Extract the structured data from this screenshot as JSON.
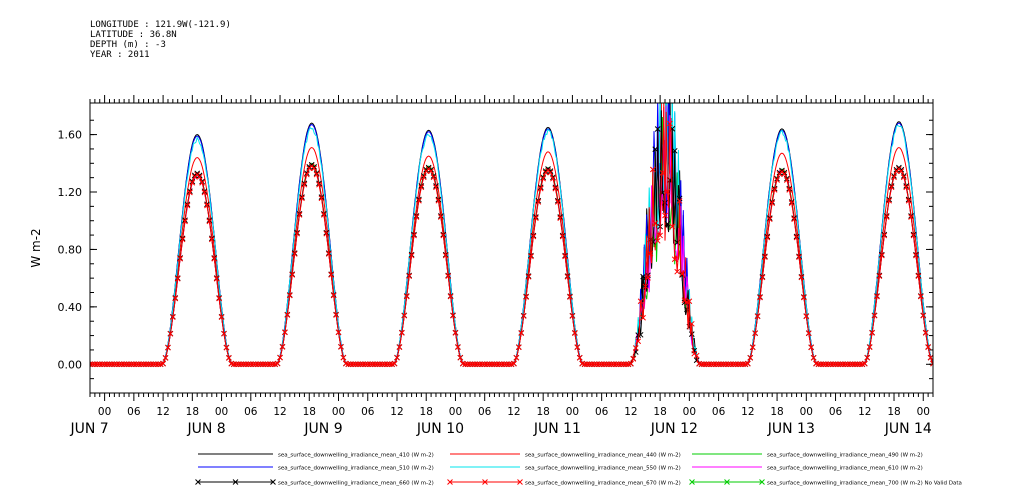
{
  "header": {
    "longitude": "LONGITUDE : 121.9W(-121.9)",
    "latitude": "LATITUDE : 36.8N",
    "depth": "DEPTH (m) : -3",
    "year": "YEAR : 2011"
  },
  "chart_data": {
    "type": "line",
    "ylabel": "W m-2",
    "ylim": [
      -0.2,
      1.82
    ],
    "yticks": [
      0.0,
      0.4,
      0.8,
      1.2,
      1.6
    ],
    "ytick_labels": [
      "0.00",
      "0.40",
      "0.80",
      "1.20",
      "1.60"
    ],
    "x_unit": "hours from 2011-06-07 00:00",
    "xlim": [
      -3,
      170
    ],
    "hour_tick_labels": [
      "06",
      "12",
      "18",
      "00"
    ],
    "day_labels": [
      {
        "label": "JUN  7",
        "hour": 0
      },
      {
        "label": "JUN  8",
        "hour": 24
      },
      {
        "label": "JUN  9",
        "hour": 48
      },
      {
        "label": "JUN 10",
        "hour": 72
      },
      {
        "label": "JUN 11",
        "hour": 96
      },
      {
        "label": "JUN 12",
        "hour": 120
      },
      {
        "label": "JUN 13",
        "hour": 144
      },
      {
        "label": "JUN 14",
        "hour": 168
      }
    ],
    "daily_peaks": [
      {
        "day": "JUN 7",
        "peak_hour": 19,
        "series_410": 1.6,
        "series_510": 1.59,
        "series_550": 1.57,
        "series_440": 1.44,
        "series_490": 1.33,
        "series_610": 1.32,
        "series_660": 1.33,
        "series_670": 1.32
      },
      {
        "day": "JUN 8",
        "peak_hour": 42.5,
        "series_410": 1.68,
        "series_510": 1.67,
        "series_550": 1.64,
        "series_440": 1.51,
        "series_490": 1.4,
        "series_610": 1.39,
        "series_660": 1.39,
        "series_670": 1.38
      },
      {
        "day": "JUN 9",
        "peak_hour": 66.5,
        "series_410": 1.63,
        "series_510": 1.62,
        "series_550": 1.6,
        "series_440": 1.45,
        "series_490": 1.38,
        "series_610": 1.37,
        "series_660": 1.37,
        "series_670": 1.36
      },
      {
        "day": "JUN 10",
        "peak_hour": 91,
        "series_410": 1.65,
        "series_510": 1.64,
        "series_550": 1.62,
        "series_440": 1.48,
        "series_490": 1.37,
        "series_610": 1.36,
        "series_660": 1.36,
        "series_670": 1.35
      },
      {
        "day": "JUN 11",
        "peak_hour": 115,
        "series_410": 1.73,
        "series_510": 1.72,
        "series_550": 1.7,
        "series_440": 1.55,
        "series_490": 1.47,
        "series_610": 1.46,
        "series_660": 1.46,
        "series_670": 1.45
      },
      {
        "day": "JUN 12",
        "peak_hour": 139,
        "series_410": 1.64,
        "series_510": 1.63,
        "series_550": 1.61,
        "series_440": 1.47,
        "series_490": 1.36,
        "series_610": 1.35,
        "series_660": 1.35,
        "series_670": 1.34
      },
      {
        "day": "JUN 13",
        "peak_hour": 163,
        "series_410": 1.69,
        "series_510": 1.68,
        "series_550": 1.66,
        "series_440": 1.51,
        "series_490": 1.37,
        "series_610": 1.36,
        "series_660": 1.37,
        "series_670": 1.36
      }
    ],
    "series": [
      {
        "name": "sea_surface_downwelling_irradiance_mean_410 (W m-2)",
        "color": "#000000",
        "marker": "none",
        "scale": 1.0,
        "noise": 0.0
      },
      {
        "name": "sea_surface_downwelling_irradiance_mean_440 (W m-2)",
        "color": "#ff0000",
        "marker": "none",
        "scale": 0.9,
        "noise": 0.0
      },
      {
        "name": "sea_surface_downwelling_irradiance_mean_490 (W m-2)",
        "color": "#00cc00",
        "marker": "none",
        "scale": 0.83,
        "noise": 0.0
      },
      {
        "name": "sea_surface_downwelling_irradiance_mean_510 (W m-2)",
        "color": "#0000ff",
        "marker": "none",
        "scale": 0.995,
        "noise": 0.0
      },
      {
        "name": "sea_surface_downwelling_irradiance_mean_550 (W m-2)",
        "color": "#00e5ee",
        "marker": "none",
        "scale": 0.985,
        "noise": 0.04
      },
      {
        "name": "sea_surface_downwelling_irradiance_mean_610 (W m-2)",
        "color": "#ff00ff",
        "marker": "none",
        "scale": 0.9,
        "noise": 0.02
      },
      {
        "name": "sea_surface_downwelling_irradiance_mean_660 (W m-2)",
        "color": "#000000",
        "marker": "x",
        "scale": 0.83,
        "noise": 0.0
      },
      {
        "name": "sea_surface_downwelling_irradiance_mean_670 (W m-2)",
        "color": "#ff0000",
        "marker": "x",
        "scale": 0.825,
        "noise": 0.0
      },
      {
        "name": "sea_surface_downwelling_irradiance_mean_700 (W m-2) No Valid Data",
        "color": "#00cc00",
        "marker": "x",
        "scale": 0,
        "noise": 0.0
      }
    ]
  }
}
